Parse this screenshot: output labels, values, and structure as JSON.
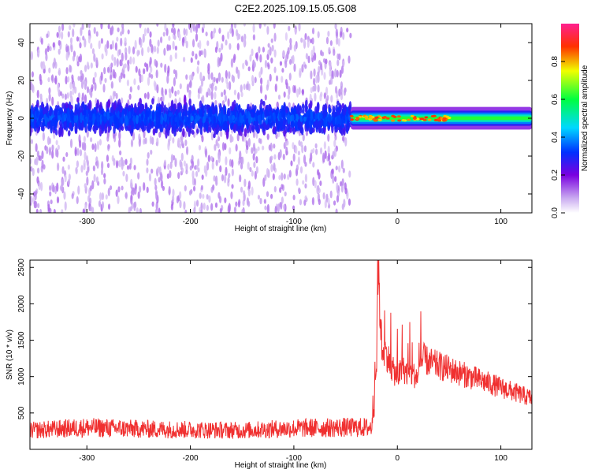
{
  "title": "C2E2.2025.109.15.05.G08",
  "chart_data": [
    {
      "type": "heatmap",
      "xlabel": "Height of straight line (km)",
      "ylabel": "Frequency (Hz)",
      "xlim": [
        -355,
        130
      ],
      "ylim": [
        -50,
        50
      ],
      "xticks": [
        -300,
        -200,
        -100,
        0,
        100
      ],
      "xtick_labels": [
        "-300",
        "-200",
        "-100",
        "0",
        "100"
      ],
      "yticks": [
        -40,
        -20,
        0,
        20,
        40
      ],
      "ytick_labels": [
        "-40",
        "-20",
        "0",
        "20",
        "40"
      ],
      "colorbar": {
        "label": "Normalized spectral amplitude",
        "range": [
          0,
          1
        ],
        "ticks": [
          0.0,
          0.2,
          0.4,
          0.6,
          0.8
        ],
        "tick_labels": [
          "0.0",
          "0.2",
          "0.4",
          "0.6",
          "0.8"
        ]
      },
      "regions": [
        {
          "x_range": [
            -355,
            -45
          ],
          "description_level": "noise",
          "core_band_hz": [
            -10,
            10
          ],
          "core_amplitude": 0.2,
          "spread_band_hz": [
            -50,
            50
          ],
          "spread_amplitude": 0.05
        },
        {
          "x_range": [
            -45,
            130
          ],
          "description_level": "signal",
          "band_hz": [
            -3,
            3
          ],
          "peak_amplitude": 0.9,
          "edge_amplitude": 0.3
        }
      ]
    },
    {
      "type": "line",
      "xlabel": "Height of straight line (km)",
      "ylabel": "SNR (10 * v/v)",
      "xlim": [
        -355,
        130
      ],
      "ylim": [
        0,
        2600
      ],
      "xticks": [
        -300,
        -200,
        -100,
        0,
        100
      ],
      "xtick_labels": [
        "-300",
        "-200",
        "-100",
        "0",
        "100"
      ],
      "yticks": [
        500,
        1000,
        1500,
        2000,
        2500
      ],
      "ytick_labels": [
        "500",
        "1000",
        "1500",
        "2000",
        "2500"
      ],
      "series": [
        {
          "color": "#f03030",
          "x": [
            -355,
            -300,
            -250,
            -200,
            -150,
            -100,
            -50,
            -25,
            -20,
            -19,
            -15,
            -10,
            -5,
            0,
            5,
            10,
            20,
            25,
            30,
            40,
            50,
            60,
            70,
            80,
            90,
            100,
            110,
            120,
            130
          ],
          "y": [
            260,
            300,
            280,
            270,
            260,
            290,
            300,
            300,
            1200,
            2600,
            1400,
            1300,
            1100,
            1000,
            1100,
            1050,
            1000,
            1250,
            1200,
            1150,
            1100,
            1050,
            1000,
            950,
            900,
            850,
            800,
            750,
            700
          ]
        }
      ]
    }
  ],
  "colors": {
    "line": "#f03030",
    "background": "#ffffff",
    "axis": "#000000"
  }
}
